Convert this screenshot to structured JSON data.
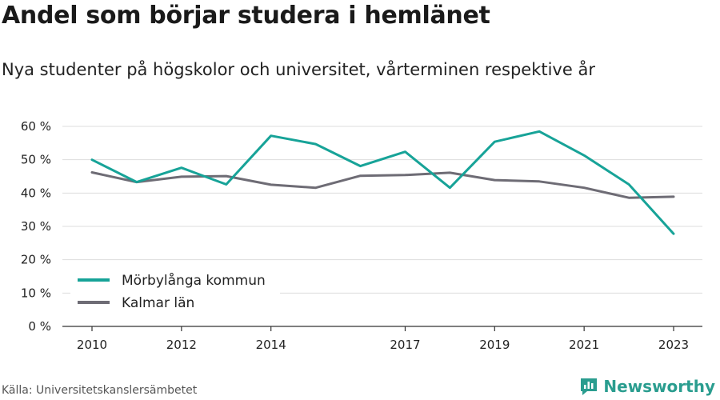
{
  "header": {
    "title": "Andel som börjar studera i hemlänet",
    "subtitle": "Nya studenter på högskolor och universitet, vårterminen respektive år"
  },
  "footer": {
    "source": "Källa: Universitetskanslersämbetet",
    "brand": "Newsworthy"
  },
  "colors": {
    "series_1": "#17a398",
    "series_2": "#6e6c75",
    "grid": "#dddddd",
    "axis": "#333333",
    "brand": "#2a9d8f"
  },
  "chart_data": {
    "type": "line",
    "title": "Andel som börjar studera i hemlänet",
    "subtitle": "Nya studenter på högskolor och universitet, vårterminen respektive år",
    "xlabel": "",
    "ylabel": "",
    "x": [
      2010,
      2011,
      2012,
      2013,
      2014,
      2015,
      2016,
      2017,
      2018,
      2019,
      2020,
      2021,
      2022,
      2023
    ],
    "x_tick_values": [
      2010,
      2012,
      2014,
      2017,
      2019,
      2021,
      2023
    ],
    "x_tick_labels": [
      "2010",
      "2012",
      "2014",
      "2017",
      "2019",
      "2021",
      "2023"
    ],
    "xlim": [
      2010,
      2023
    ],
    "ylim": [
      0,
      60
    ],
    "y_tick_values": [
      0,
      10,
      20,
      30,
      40,
      50,
      60
    ],
    "y_tick_labels": [
      "0 %",
      "10 %",
      "20 %",
      "30 %",
      "40 %",
      "50 %",
      "60 %"
    ],
    "grid": true,
    "legend": "bottom-left",
    "series": [
      {
        "name": "Mörbylånga kommun",
        "color": "#17a398",
        "values": [
          50.0,
          43.3,
          47.6,
          42.6,
          57.2,
          54.7,
          48.1,
          52.4,
          41.6,
          55.4,
          58.5,
          51.3,
          42.6,
          27.8
        ]
      },
      {
        "name": "Kalmar län",
        "color": "#6e6c75",
        "values": [
          46.2,
          43.3,
          44.9,
          45.1,
          42.5,
          41.6,
          45.2,
          45.4,
          46.1,
          43.9,
          43.5,
          41.6,
          38.6,
          38.9
        ]
      }
    ]
  }
}
